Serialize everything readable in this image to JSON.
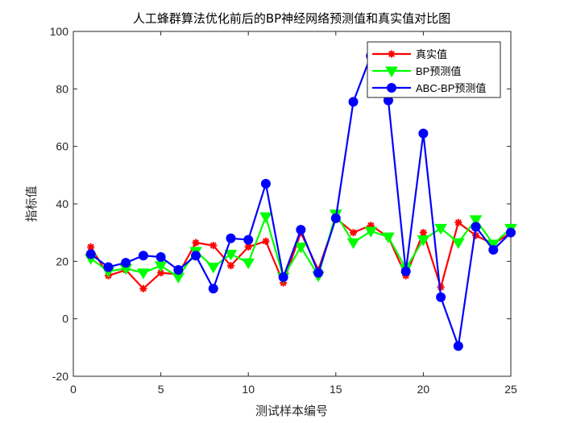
{
  "chart_data": {
    "type": "line",
    "title": "人工蜂群算法优化前后的BP神经网络预测值和真实值对比图",
    "xlabel": "测试样本编号",
    "ylabel": "指标值",
    "xlim": [
      0,
      25
    ],
    "ylim": [
      -20,
      100
    ],
    "xticks": [
      "0",
      "5",
      "10",
      "15",
      "20",
      "25"
    ],
    "yticks": [
      "-20",
      "0",
      "20",
      "40",
      "60",
      "80",
      "100"
    ],
    "grid": false,
    "legend_position": "top-right",
    "x": [
      1,
      2,
      3,
      4,
      5,
      6,
      7,
      8,
      9,
      10,
      11,
      12,
      13,
      14,
      15,
      16,
      17,
      18,
      19,
      20,
      21,
      22,
      23,
      24,
      25
    ],
    "series": [
      {
        "name": "真实值",
        "color": "#ff0000",
        "marker": "star",
        "values": [
          25,
          15,
          17,
          10.5,
          16,
          15.5,
          26.5,
          25.5,
          18.5,
          25,
          27,
          12.5,
          30,
          17,
          35,
          30,
          32.5,
          28.5,
          15,
          30,
          11,
          33.5,
          29,
          26,
          30
        ]
      },
      {
        "name": "BP预测值",
        "color": "#00ff00",
        "marker": "triangle-down",
        "values": [
          21,
          16.5,
          17.5,
          16,
          18.5,
          14.5,
          23.5,
          18,
          22.5,
          19.5,
          35.5,
          14.5,
          25,
          15,
          36.5,
          26.5,
          30.5,
          28.5,
          17.5,
          27.5,
          31.5,
          26.5,
          34.5,
          26,
          31.5
        ]
      },
      {
        "name": "ABC-BP预测值",
        "color": "#0000ff",
        "marker": "circle",
        "values": [
          22.5,
          18,
          19.5,
          22,
          21.5,
          17,
          22,
          10.5,
          28,
          27.5,
          47,
          14.5,
          31,
          16,
          35,
          75.5,
          91.5,
          76,
          16.5,
          64.5,
          7.5,
          -9.5,
          32,
          24,
          30
        ]
      }
    ]
  }
}
